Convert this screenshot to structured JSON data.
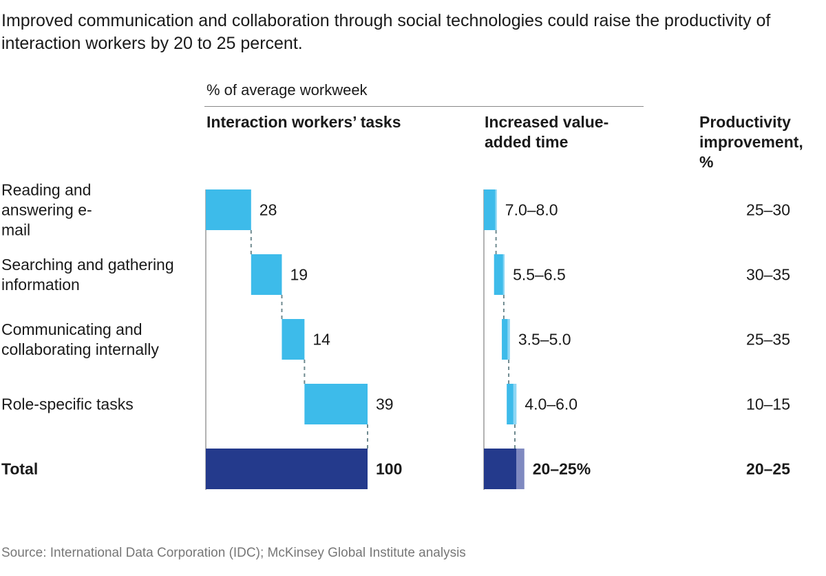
{
  "title": "Improved communication and collaboration through social technologies could raise the productivity of interaction workers by 20 to 25 percent.",
  "unit_label": "% of average workweek",
  "headers": {
    "tasks": "Interaction workers’ tasks",
    "value_added": "Increased value-added time",
    "productivity": "Productivity improvement, %"
  },
  "source": "Source: International Data Corporation (IDC); McKinsey Global Institute analysis",
  "colors": {
    "bar": "#3dbbea",
    "bar_light": "#8dd6f4",
    "total": "#243a8c",
    "total_light": "#7f89c0",
    "axis": "#999999",
    "connector": "#6f8a90"
  },
  "chart_data": {
    "type": "waterfall",
    "categories": [
      "Reading and answering e-mail",
      "Searching and gathering information",
      "Communicating and collaborating internally",
      "Role-specific tasks",
      "Total"
    ],
    "tasks": {
      "values": [
        28,
        19,
        14,
        39,
        100
      ],
      "labels": [
        "28",
        "19",
        "14",
        "39",
        "100"
      ]
    },
    "value_added": {
      "low": [
        7.0,
        5.5,
        3.5,
        4.0,
        20
      ],
      "high": [
        8.0,
        6.5,
        5.0,
        6.0,
        25
      ],
      "labels": [
        "7.0–8.0",
        "5.5–6.5",
        "3.5–5.0",
        "4.0–6.0",
        "20–25%"
      ]
    },
    "productivity": [
      "25–30",
      "30–35",
      "25–35",
      "10–15",
      "20–25"
    ]
  }
}
